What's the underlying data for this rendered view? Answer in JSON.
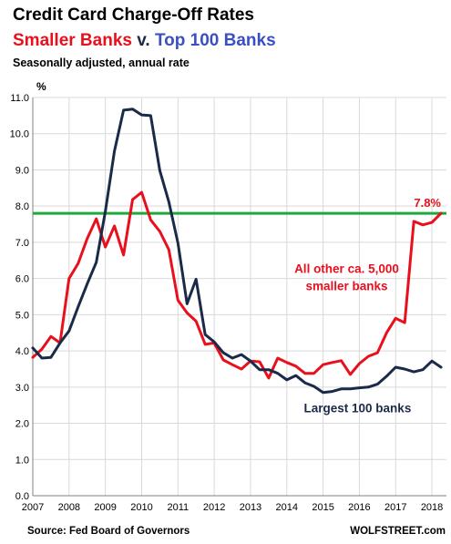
{
  "header": {
    "title": "Credit Card Charge-Off Rates",
    "subtitle_part1": "Smaller Banks",
    "subtitle_part2": " v. ",
    "subtitle_part3": "Top 100 Banks",
    "note": "Seasonally adjusted, annual rate"
  },
  "footer": {
    "source": "Source: Fed Board of Governors",
    "brand": "WOLFSTREET.com"
  },
  "colors": {
    "smaller_banks": "#e8101c",
    "top100": "#1b2a48",
    "reference_line": "#1fa83c"
  },
  "chart_data": {
    "type": "line",
    "title": "Credit Card Charge-Off Rates",
    "ylabel": "%",
    "xlabel": "",
    "ylim": [
      0,
      11
    ],
    "xlim": [
      2007,
      2018.4
    ],
    "grid": true,
    "y_ticks": [
      "0.0",
      "1.0",
      "2.0",
      "3.0",
      "4.0",
      "5.0",
      "6.0",
      "7.0",
      "8.0",
      "9.0",
      "10.0",
      "11.0"
    ],
    "x_ticks": [
      "2007",
      "2008",
      "2009",
      "2010",
      "2011",
      "2012",
      "2013",
      "2014",
      "2015",
      "2016",
      "2017",
      "2018"
    ],
    "reference_line": {
      "value": 7.8,
      "label": "7.8%"
    },
    "series": [
      {
        "key": "smaller",
        "name": "All other ca. 5,000 smaller banks",
        "points": [
          [
            2007.0,
            3.82
          ],
          [
            2007.25,
            4.05
          ],
          [
            2007.5,
            4.4
          ],
          [
            2007.75,
            4.22
          ],
          [
            2008.0,
            6.0
          ],
          [
            2008.25,
            6.42
          ],
          [
            2008.5,
            7.1
          ],
          [
            2008.75,
            7.65
          ],
          [
            2009.0,
            6.87
          ],
          [
            2009.25,
            7.45
          ],
          [
            2009.5,
            6.65
          ],
          [
            2009.75,
            8.18
          ],
          [
            2010.0,
            8.38
          ],
          [
            2010.25,
            7.62
          ],
          [
            2010.5,
            7.3
          ],
          [
            2010.75,
            6.8
          ],
          [
            2011.0,
            5.4
          ],
          [
            2011.25,
            5.05
          ],
          [
            2011.5,
            4.82
          ],
          [
            2011.75,
            4.18
          ],
          [
            2012.0,
            4.22
          ],
          [
            2012.25,
            3.75
          ],
          [
            2012.5,
            3.62
          ],
          [
            2012.75,
            3.5
          ],
          [
            2013.0,
            3.72
          ],
          [
            2013.25,
            3.7
          ],
          [
            2013.5,
            3.25
          ],
          [
            2013.75,
            3.8
          ],
          [
            2014.0,
            3.68
          ],
          [
            2014.25,
            3.58
          ],
          [
            2014.5,
            3.38
          ],
          [
            2014.75,
            3.38
          ],
          [
            2015.0,
            3.62
          ],
          [
            2015.25,
            3.68
          ],
          [
            2015.5,
            3.73
          ],
          [
            2015.75,
            3.35
          ],
          [
            2016.0,
            3.65
          ],
          [
            2016.25,
            3.85
          ],
          [
            2016.5,
            3.95
          ],
          [
            2016.75,
            4.5
          ],
          [
            2017.0,
            4.9
          ],
          [
            2017.25,
            4.78
          ],
          [
            2017.5,
            7.58
          ],
          [
            2017.75,
            7.48
          ],
          [
            2018.0,
            7.55
          ],
          [
            2018.25,
            7.8
          ]
        ]
      },
      {
        "key": "top100",
        "name": "Largest 100 banks",
        "points": [
          [
            2007.0,
            4.08
          ],
          [
            2007.25,
            3.8
          ],
          [
            2007.5,
            3.82
          ],
          [
            2007.75,
            4.22
          ],
          [
            2008.0,
            4.55
          ],
          [
            2008.25,
            5.22
          ],
          [
            2008.5,
            5.85
          ],
          [
            2008.75,
            6.45
          ],
          [
            2009.0,
            7.85
          ],
          [
            2009.25,
            9.52
          ],
          [
            2009.5,
            10.65
          ],
          [
            2009.75,
            10.68
          ],
          [
            2010.0,
            10.52
          ],
          [
            2010.25,
            10.5
          ],
          [
            2010.5,
            8.98
          ],
          [
            2010.75,
            8.12
          ],
          [
            2011.0,
            6.98
          ],
          [
            2011.25,
            5.3
          ],
          [
            2011.5,
            5.98
          ],
          [
            2011.75,
            4.45
          ],
          [
            2012.0,
            4.25
          ],
          [
            2012.25,
            3.95
          ],
          [
            2012.5,
            3.8
          ],
          [
            2012.75,
            3.9
          ],
          [
            2013.0,
            3.72
          ],
          [
            2013.25,
            3.48
          ],
          [
            2013.5,
            3.48
          ],
          [
            2013.75,
            3.38
          ],
          [
            2014.0,
            3.2
          ],
          [
            2014.25,
            3.32
          ],
          [
            2014.5,
            3.12
          ],
          [
            2014.75,
            3.02
          ],
          [
            2015.0,
            2.85
          ],
          [
            2015.25,
            2.88
          ],
          [
            2015.5,
            2.95
          ],
          [
            2015.75,
            2.95
          ],
          [
            2016.0,
            2.98
          ],
          [
            2016.25,
            3.0
          ],
          [
            2016.5,
            3.08
          ],
          [
            2016.75,
            3.3
          ],
          [
            2017.0,
            3.55
          ],
          [
            2017.25,
            3.5
          ],
          [
            2017.5,
            3.42
          ],
          [
            2017.75,
            3.48
          ],
          [
            2018.0,
            3.72
          ],
          [
            2018.25,
            3.55
          ]
        ]
      }
    ],
    "annotations": [
      {
        "text_lines": [
          "All other ca. 5,000",
          "smaller banks"
        ],
        "series": "smaller"
      },
      {
        "text_lines": [
          "Largest 100 banks"
        ],
        "series": "top100"
      }
    ]
  }
}
